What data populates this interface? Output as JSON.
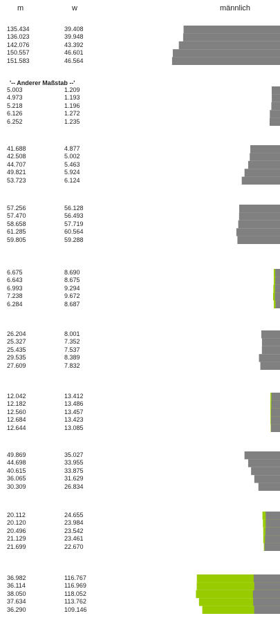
{
  "chart_data": {
    "type": "bar",
    "orientation": "horizontal",
    "headers": {
      "m": "m",
      "w": "w",
      "chart": "männlich"
    },
    "note": "'-- Anderer Maßstab --'",
    "colors": {
      "male": "#808080",
      "female_excess": "#99cc00"
    },
    "groups": [
      {
        "rows": [
          {
            "m": "135.434",
            "w": "39.408"
          },
          {
            "m": "136.023",
            "w": "39.948"
          },
          {
            "m": "142.076",
            "w": "43.392"
          },
          {
            "m": "150.557",
            "w": "46.601"
          },
          {
            "m": "151.583",
            "w": "46.564"
          }
        ]
      },
      {
        "rows": [
          {
            "m": "5.003",
            "w": "1.209"
          },
          {
            "m": "4.973",
            "w": "1.193"
          },
          {
            "m": "5.218",
            "w": "1.196"
          },
          {
            "m": "6.126",
            "w": "1.272"
          },
          {
            "m": "6.252",
            "w": "1.235"
          }
        ]
      },
      {
        "rows": [
          {
            "m": "41.688",
            "w": "4.877"
          },
          {
            "m": "42.508",
            "w": "5.002"
          },
          {
            "m": "44.707",
            "w": "5.463"
          },
          {
            "m": "49.821",
            "w": "5.924"
          },
          {
            "m": "53.723",
            "w": "6.124"
          }
        ]
      },
      {
        "rows": [
          {
            "m": "57.256",
            "w": "56.128"
          },
          {
            "m": "57.470",
            "w": "56.493"
          },
          {
            "m": "58.658",
            "w": "57.719"
          },
          {
            "m": "61.285",
            "w": "60.564"
          },
          {
            "m": "59.805",
            "w": "59.288"
          }
        ]
      },
      {
        "rows": [
          {
            "m": "6.675",
            "w": "8.690"
          },
          {
            "m": "6.643",
            "w": "8.675"
          },
          {
            "m": "6.993",
            "w": "9.294"
          },
          {
            "m": "7.238",
            "w": "9.672"
          },
          {
            "m": "6.284",
            "w": "8.687"
          }
        ]
      },
      {
        "rows": [
          {
            "m": "26.204",
            "w": "8.001"
          },
          {
            "m": "25.327",
            "w": "7.352"
          },
          {
            "m": "25.435",
            "w": "7.537"
          },
          {
            "m": "29.535",
            "w": "8.389"
          },
          {
            "m": "27.609",
            "w": "7.832"
          }
        ]
      },
      {
        "rows": [
          {
            "m": "12.042",
            "w": "13.412"
          },
          {
            "m": "12.182",
            "w": "13.486"
          },
          {
            "m": "12.560",
            "w": "13.457"
          },
          {
            "m": "12.684",
            "w": "13.423"
          },
          {
            "m": "12.644",
            "w": "13.085"
          }
        ]
      },
      {
        "rows": [
          {
            "m": "49.869",
            "w": "35.027"
          },
          {
            "m": "44.698",
            "w": "33.955"
          },
          {
            "m": "40.615",
            "w": "33.875"
          },
          {
            "m": "36.065",
            "w": "31.629"
          },
          {
            "m": "30.309",
            "w": "26.834"
          }
        ]
      },
      {
        "rows": [
          {
            "m": "20.112",
            "w": "24.655"
          },
          {
            "m": "20.120",
            "w": "23.984"
          },
          {
            "m": "20.496",
            "w": "23.542"
          },
          {
            "m": "21.129",
            "w": "23.461"
          },
          {
            "m": "21.699",
            "w": "22.670"
          }
        ]
      },
      {
        "rows": [
          {
            "m": "36.982",
            "w": "116.767"
          },
          {
            "m": "36.114",
            "w": "116.969"
          },
          {
            "m": "38.050",
            "w": "118.052"
          },
          {
            "m": "37.634",
            "w": "113.762"
          },
          {
            "m": "36.290",
            "w": "109.146"
          }
        ]
      }
    ]
  }
}
